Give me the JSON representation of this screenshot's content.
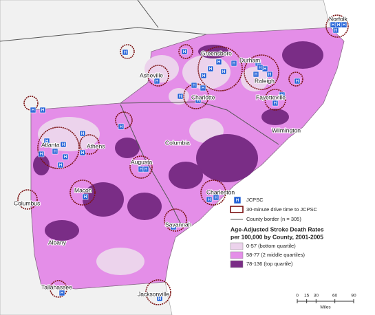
{
  "cities": [
    "Norfolk",
    "Greensboro",
    "Durham",
    "Asheville",
    "Raleigh",
    "Charlotte",
    "Fayetteville",
    "Wilmington",
    "Columbia",
    "Atlanta",
    "Athens",
    "Augusta",
    "Charleston",
    "Macon",
    "Columbus",
    "Savannah",
    "Albany",
    "Tallahassee",
    "Jacksonville"
  ],
  "legend": {
    "icon_letter": "H",
    "hospital": "JCPSC",
    "drive_time": "30-minute drive time to JCPSC",
    "county_border": "County border (n = 305)",
    "title": [
      "Age-Adjusted Stroke Death Rates",
      "per 100,000 by County, 2001-2005"
    ],
    "quartiles": [
      {
        "label": "0-57 (bottom quartile)",
        "color": "#ecd3ec"
      },
      {
        "label": "58-77 (2 middle quartiles)",
        "color": "#e48ee8"
      },
      {
        "label": "78-136 (top quartile)",
        "color": "#7a2d86"
      }
    ]
  },
  "scale_bar": {
    "ticks": [
      0,
      15,
      30,
      60,
      90
    ],
    "unit": "Miles"
  }
}
